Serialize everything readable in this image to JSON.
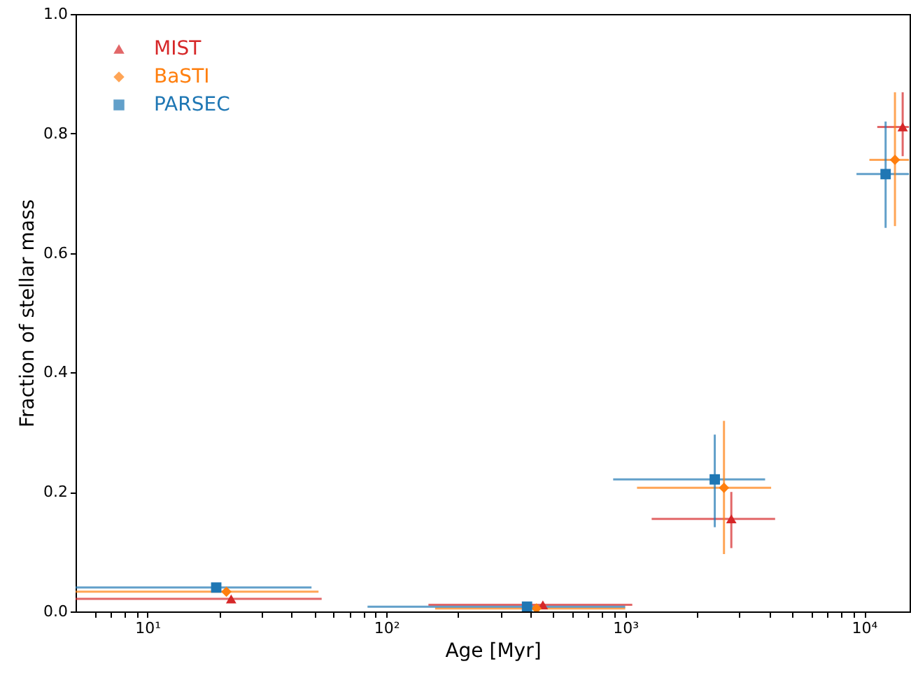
{
  "chart_data": {
    "type": "scatter",
    "xlabel": "Age [Myr]",
    "ylabel": "Fraction of stellar mass",
    "log": "x",
    "grid": false,
    "legend": "top left",
    "xlim": [
      5,
      15500
    ],
    "ylim": [
      0,
      1
    ],
    "xticks": [
      {
        "value": 10,
        "label": "10¹"
      },
      {
        "value": 100,
        "label": "10²"
      },
      {
        "value": 1000,
        "label": "10³"
      },
      {
        "value": 10000,
        "label": "10⁴"
      },
      {
        "value": 6,
        "label": null
      },
      {
        "value": 7,
        "label": null
      },
      {
        "value": 8,
        "label": null
      },
      {
        "value": 9,
        "label": null
      },
      {
        "value": 20,
        "label": null
      },
      {
        "value": 30,
        "label": null
      },
      {
        "value": 40,
        "label": null
      },
      {
        "value": 50,
        "label": null
      },
      {
        "value": 60,
        "label": null
      },
      {
        "value": 70,
        "label": null
      },
      {
        "value": 80,
        "label": null
      },
      {
        "value": 90,
        "label": null
      },
      {
        "value": 200,
        "label": null
      },
      {
        "value": 300,
        "label": null
      },
      {
        "value": 400,
        "label": null
      },
      {
        "value": 500,
        "label": null
      },
      {
        "value": 600,
        "label": null
      },
      {
        "value": 700,
        "label": null
      },
      {
        "value": 800,
        "label": null
      },
      {
        "value": 900,
        "label": null
      },
      {
        "value": 2000,
        "label": null
      },
      {
        "value": 3000,
        "label": null
      },
      {
        "value": 4000,
        "label": null
      },
      {
        "value": 5000,
        "label": null
      },
      {
        "value": 6000,
        "label": null
      },
      {
        "value": 7000,
        "label": null
      },
      {
        "value": 8000,
        "label": null
      },
      {
        "value": 9000,
        "label": null
      }
    ],
    "yticks": [
      {
        "value": 0,
        "label": "0.0"
      },
      {
        "value": 0.2,
        "label": "0.2"
      },
      {
        "value": 0.4,
        "label": "0.4"
      },
      {
        "value": 0.6,
        "label": "0.6"
      },
      {
        "value": 0.8,
        "label": "0.8"
      },
      {
        "value": 1,
        "label": "1.0"
      }
    ],
    "series": [
      {
        "name": "MIST",
        "color": "#d62728",
        "marker": "triangle",
        "x": [
          22.4,
          452,
          2780,
          14500
        ],
        "values": [
          0.021,
          0.011,
          0.155,
          0.811
        ],
        "errors": [
          null,
          null,
          [
            0.106,
            0.2
          ],
          [
            0.762,
            0.869
          ]
        ],
        "xerrors": [
          [
            5,
            53.6
          ],
          [
            150,
            1070
          ],
          [
            1290,
            4240
          ],
          [
            11350,
            15400
          ]
        ]
      },
      {
        "name": "BaSTI",
        "color": "#ff7f0e",
        "marker": "diamond",
        "x": [
          21.4,
          425,
          2590,
          13460
        ],
        "values": [
          0.033,
          0.005,
          0.207,
          0.756
        ],
        "errors": [
          null,
          null,
          [
            0.096,
            0.319
          ],
          [
            0.645,
            0.869
          ]
        ],
        "xerrors": [
          [
            5,
            52
          ],
          [
            160,
            1000
          ],
          [
            1120,
            4080
          ],
          [
            10520,
            15400
          ]
        ]
      },
      {
        "name": "PARSEC",
        "color": "#1f77b4",
        "marker": "square",
        "x": [
          19.4,
          388,
          2370,
          12300
        ],
        "values": [
          0.04,
          0.008,
          0.221,
          0.732
        ],
        "errors": [
          [
            0.035,
            0.045
          ],
          null,
          [
            0.141,
            0.296
          ],
          [
            0.642,
            0.82
          ]
        ],
        "xerrors": [
          [
            5,
            48.6
          ],
          [
            83.4,
            1000
          ],
          [
            890,
            3850
          ],
          [
            9290,
            15400
          ]
        ]
      }
    ]
  }
}
